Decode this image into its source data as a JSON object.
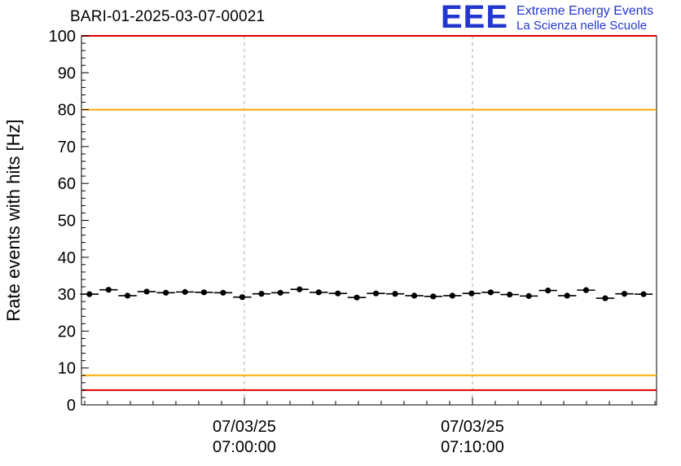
{
  "header": {
    "title": "BARI-01-2025-03-07-00021",
    "logo": {
      "text": "EEE",
      "line1": "Extreme Energy Events",
      "line2": "La Scienza nelle Scuole",
      "color": "#2337cf"
    }
  },
  "chart_data": {
    "type": "scatter",
    "title": "BARI-01-2025-03-07-00021",
    "ylabel": "Rate events with hits [Hz]",
    "xlabel": "",
    "ylim": [
      0,
      100
    ],
    "xlim": [
      -7.14,
      18.07
    ],
    "x_unit": "minutes relative to 07/03/25 07:00:00",
    "grid": "vertical dashed gridlines at major x ticks",
    "legend": "none",
    "yticks": [
      0,
      10,
      20,
      30,
      40,
      50,
      60,
      70,
      80,
      90,
      100
    ],
    "y_minor_tick_step": 2,
    "x_minor_tick_step": 1,
    "xticks": [
      {
        "minutes": 0,
        "date": "07/03/25",
        "time": "07:00:00"
      },
      {
        "minutes": 10,
        "date": "07/03/25",
        "time": "07:10:00"
      }
    ],
    "threshold_lines": [
      {
        "y": 100,
        "color": "#dd0000"
      },
      {
        "y": 80,
        "color": "#ffaa00"
      },
      {
        "y": 8,
        "color": "#ffaa00"
      },
      {
        "y": 4,
        "color": "#dd0000"
      }
    ],
    "series": [
      {
        "name": "rate-events-with-hits",
        "marker": "filled-circle",
        "color": "#000000",
        "x_bin_halfwidth": 0.4,
        "y_error": 0.6,
        "points": [
          {
            "x": -6.79,
            "y": 30.0
          },
          {
            "x": -5.95,
            "y": 31.2
          },
          {
            "x": -5.12,
            "y": 29.6
          },
          {
            "x": -4.28,
            "y": 30.7
          },
          {
            "x": -3.44,
            "y": 30.4
          },
          {
            "x": -2.6,
            "y": 30.6
          },
          {
            "x": -1.77,
            "y": 30.5
          },
          {
            "x": -0.93,
            "y": 30.4
          },
          {
            "x": -0.09,
            "y": 29.2
          },
          {
            "x": 0.75,
            "y": 30.1
          },
          {
            "x": 1.58,
            "y": 30.4
          },
          {
            "x": 2.42,
            "y": 31.3
          },
          {
            "x": 3.26,
            "y": 30.5
          },
          {
            "x": 4.1,
            "y": 30.2
          },
          {
            "x": 4.93,
            "y": 29.1
          },
          {
            "x": 5.77,
            "y": 30.2
          },
          {
            "x": 6.61,
            "y": 30.1
          },
          {
            "x": 7.45,
            "y": 29.6
          },
          {
            "x": 8.28,
            "y": 29.4
          },
          {
            "x": 9.12,
            "y": 29.6
          },
          {
            "x": 9.96,
            "y": 30.2
          },
          {
            "x": 10.8,
            "y": 30.5
          },
          {
            "x": 11.63,
            "y": 29.9
          },
          {
            "x": 12.47,
            "y": 29.5
          },
          {
            "x": 13.31,
            "y": 31.0
          },
          {
            "x": 14.15,
            "y": 29.6
          },
          {
            "x": 14.98,
            "y": 31.1
          },
          {
            "x": 15.82,
            "y": 28.9
          },
          {
            "x": 16.66,
            "y": 30.1
          },
          {
            "x": 17.5,
            "y": 30.0
          }
        ]
      }
    ]
  }
}
